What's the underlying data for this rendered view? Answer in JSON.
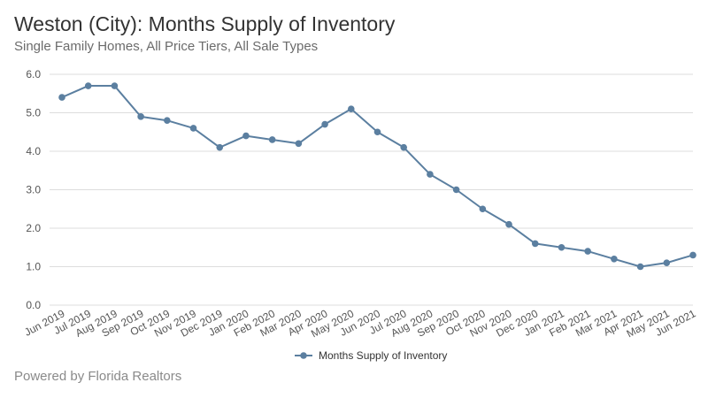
{
  "header": {
    "title": "Weston (City): Months Supply of Inventory",
    "subtitle": "Single Family Homes, All Price Tiers, All Sale Types"
  },
  "footer": {
    "text": "Powered by Florida Realtors"
  },
  "chart_data": {
    "type": "line",
    "title": "Weston (City): Months Supply of Inventory",
    "subtitle": "Single Family Homes, All Price Tiers, All Sale Types",
    "xlabel": "",
    "ylabel": "",
    "categories": [
      "Jun 2019",
      "Jul 2019",
      "Aug 2019",
      "Sep 2019",
      "Oct 2019",
      "Nov 2019",
      "Dec 2019",
      "Jan 2020",
      "Feb 2020",
      "Mar 2020",
      "Apr 2020",
      "May 2020",
      "Jun 2020",
      "Jul 2020",
      "Aug 2020",
      "Sep 2020",
      "Oct 2020",
      "Nov 2020",
      "Dec 2020",
      "Jan 2021",
      "Feb 2021",
      "Mar 2021",
      "Apr 2021",
      "May 2021",
      "Jun 2021"
    ],
    "series": [
      {
        "name": "Months Supply of Inventory",
        "values": [
          5.4,
          5.7,
          5.7,
          4.9,
          4.8,
          4.6,
          4.1,
          4.4,
          4.3,
          4.2,
          4.7,
          5.1,
          4.5,
          4.1,
          3.4,
          3.0,
          2.5,
          2.1,
          1.6,
          1.5,
          1.4,
          1.2,
          1.0,
          1.1,
          1.3
        ]
      }
    ],
    "ylim": [
      0,
      6
    ],
    "yticks": [
      "0.0",
      "1.0",
      "2.0",
      "3.0",
      "4.0",
      "5.0",
      "6.0"
    ],
    "grid": true,
    "legend": "bottom-center",
    "colors": {
      "line": "#5b7fa0",
      "grid": "#dddddd"
    }
  }
}
